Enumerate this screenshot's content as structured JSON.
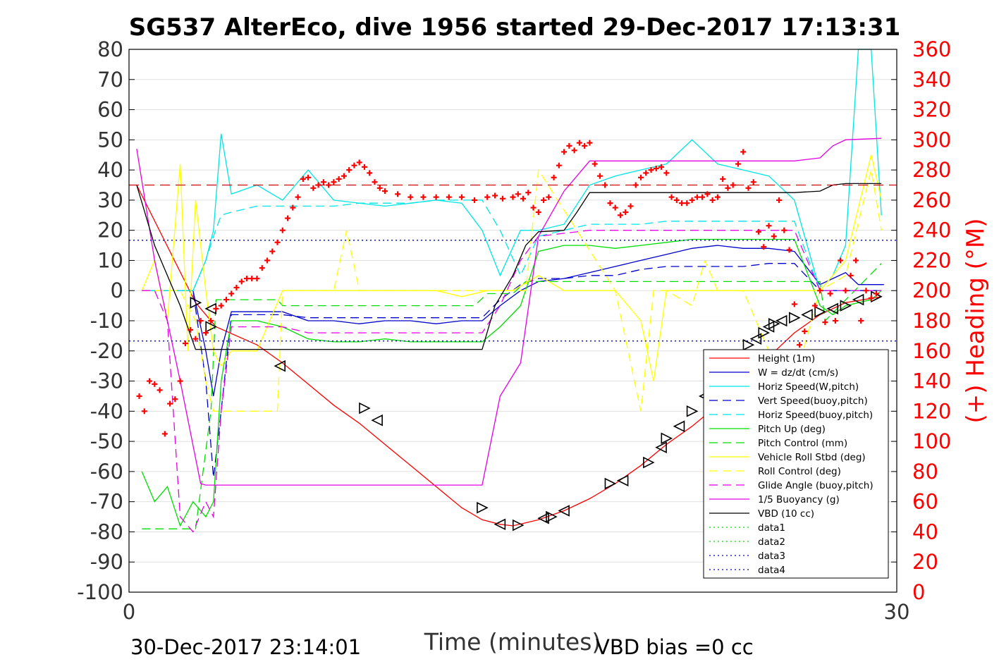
{
  "chart_data": {
    "type": "line",
    "title": "SG537 AlterEco, dive 1956 started 29-Dec-2017 17:13:31",
    "xlabel": "Time (minutes)",
    "ylabel_right": "(+) Heading (°M)",
    "xlim": [
      0,
      30
    ],
    "ylim_left": [
      -100,
      80
    ],
    "ylim_right": [
      0,
      360
    ],
    "x_ticks": [
      "0",
      "30"
    ],
    "y_ticks_left": [
      "80",
      "70",
      "60",
      "50",
      "40",
      "30",
      "20",
      "10",
      "0",
      "-10",
      "-20",
      "-30",
      "-40",
      "-50",
      "-60",
      "-70",
      "-80",
      "-90",
      "-100"
    ],
    "y_ticks_right": [
      "360",
      "340",
      "320",
      "300",
      "280",
      "260",
      "240",
      "220",
      "200",
      "180",
      "160",
      "140",
      "120",
      "100",
      "80",
      "60",
      "40",
      "20",
      "0"
    ],
    "grid": true,
    "legend_placement": "lower-right",
    "footer_left": "30-Dec-2017 23:14:01",
    "footer_right": "VBD bias =0 cc",
    "colors": {
      "heading": "#ff0000",
      "right_axis": "#ff0000",
      "height": "#ff0000",
      "w": "#0000cc",
      "horiz_speed": "#00e5e5",
      "pitch": "#00dd00",
      "roll": "#ffff00",
      "glide": "#e600e6",
      "buoyancy": "#e600e6",
      "vbd": "#000000"
    },
    "series": [
      {
        "name": "Height (1m)",
        "color": "#ff0000",
        "dash": "solid",
        "x": [
          0.3,
          2.6,
          3.4,
          5,
          6,
          7,
          8,
          9,
          10,
          11,
          12,
          13,
          13.8,
          14.5,
          15,
          15.5,
          16,
          17,
          18,
          19,
          20,
          21,
          22,
          23,
          24,
          25,
          26,
          27,
          28,
          29.4
        ],
        "y": [
          35,
          -4,
          -12,
          -18,
          -24,
          -31,
          -38,
          -44,
          -51,
          -58,
          -65,
          -72,
          -76,
          -77.5,
          -78,
          -77,
          -76,
          -73,
          -69,
          -64,
          -58,
          -51,
          -45,
          -38,
          -30,
          -22,
          -14,
          -8,
          -4,
          -2
        ]
      },
      {
        "name": "W = dz/dt (cm/s)",
        "color": "#0000cc",
        "dash": "solid",
        "x": [
          0.5,
          1.5,
          2.5,
          3,
          3.3,
          3.6,
          4,
          5,
          6,
          7,
          8,
          9,
          10,
          11,
          12,
          13,
          13.8,
          14.5,
          15.3,
          16,
          17,
          18,
          19,
          20,
          21,
          22,
          23,
          24,
          25,
          26,
          27,
          27.5,
          28,
          28.5,
          29.5
        ],
        "y": [
          0,
          0,
          0,
          -20,
          -35,
          -20,
          -7,
          -7,
          -7,
          -10,
          -10,
          -11,
          -10,
          -10,
          -11,
          -10,
          -10,
          -5,
          0,
          3,
          4,
          6,
          8,
          10,
          12,
          14,
          15,
          14,
          14,
          13,
          2,
          4,
          6,
          2,
          2
        ]
      },
      {
        "name": "Horiz Speed(W,pitch)",
        "color": "#00e5e5",
        "dash": "solid",
        "x": [
          0.5,
          1.5,
          2.5,
          3,
          3.3,
          3.6,
          4,
          5,
          6,
          7,
          8,
          9,
          10,
          11,
          12,
          13,
          13.8,
          14.5,
          15.3,
          16,
          17,
          18,
          19,
          20,
          21,
          22,
          23,
          24,
          25,
          26,
          27,
          27.5,
          28,
          28.5,
          29,
          29.4
        ],
        "y": [
          0,
          0,
          0,
          10,
          20,
          52,
          32,
          35,
          30,
          40,
          30,
          29,
          28,
          29,
          30,
          29,
          20,
          5,
          20,
          20,
          22,
          35,
          38,
          40,
          42,
          50,
          42,
          40,
          38,
          30,
          0,
          5,
          15,
          80,
          80,
          25
        ]
      },
      {
        "name": "Vert Speed(buoy,pitch)",
        "color": "#0000cc",
        "dash": "dash",
        "x": [
          0.5,
          1.5,
          2.5,
          3,
          3.3,
          3.6,
          4,
          5,
          6,
          7,
          8,
          9,
          10,
          11,
          12,
          13,
          13.8,
          14.5,
          15.3,
          16,
          17,
          18,
          19,
          20,
          21,
          22,
          23,
          24,
          25,
          26,
          27,
          28,
          29.4
        ],
        "y": [
          0,
          0,
          0,
          -30,
          -62,
          -40,
          -8,
          -8,
          -8,
          -9,
          -9,
          -9,
          -9,
          -9,
          -9,
          -9,
          -9,
          -3,
          2,
          4,
          4,
          5,
          5,
          7,
          8,
          8,
          8,
          8,
          9,
          9,
          0,
          0,
          0
        ]
      },
      {
        "name": "Horiz Speed(buoy,pitch)",
        "color": "#00e5e5",
        "dash": "dash",
        "x": [
          0.5,
          2.5,
          3,
          3.3,
          3.6,
          4,
          5,
          6,
          7,
          8,
          9,
          10,
          11,
          12,
          13,
          13.8,
          14.5,
          15.3,
          16,
          17,
          18,
          19,
          20,
          21,
          22,
          23,
          24,
          25,
          26,
          27,
          28,
          29.4
        ],
        "y": [
          0,
          0,
          10,
          18,
          25,
          26,
          28,
          28,
          28,
          28,
          29,
          29,
          29,
          30,
          30,
          30,
          20,
          5,
          18,
          20,
          22,
          22,
          22,
          23,
          23,
          23,
          23,
          23,
          23,
          0,
          0,
          0
        ]
      },
      {
        "name": "Pitch Up (deg)",
        "color": "#00dd00",
        "dash": "solid",
        "x": [
          0.5,
          1,
          1.5,
          2,
          2.5,
          3,
          3.3,
          3.6,
          4,
          5,
          6,
          7,
          8,
          9,
          10,
          11,
          12,
          13,
          13.8,
          14.5,
          15.3,
          16,
          17,
          18,
          19,
          20,
          21,
          22,
          23,
          24,
          25,
          26,
          27,
          27.5,
          28,
          29,
          29.4
        ],
        "y": [
          -60,
          -70,
          -65,
          -78,
          -70,
          -75,
          -70,
          -30,
          -10,
          -10,
          -12,
          -16,
          -17,
          -17,
          -16,
          -17,
          -17,
          -17,
          -17,
          -12,
          -5,
          13,
          15,
          15,
          14,
          15,
          16,
          17,
          17,
          17,
          17,
          17,
          -5,
          -8,
          -5,
          -3,
          0
        ]
      },
      {
        "name": "Pitch Control (mm)",
        "color": "#00dd00",
        "dash": "dash",
        "x": [
          0.5,
          2.6,
          3.2,
          3.4,
          5.8,
          6,
          13.5,
          14,
          15,
          15.5,
          27,
          27.2,
          29.4
        ],
        "y": [
          -79,
          -79,
          -40,
          -3,
          -3,
          -5,
          -5,
          -1,
          -1,
          3,
          3,
          -10,
          9
        ]
      },
      {
        "name": "Vehicle Roll Stbd (deg)",
        "color": "#ffff00",
        "dash": "solid",
        "x": [
          0.5,
          1,
          1.5,
          2,
          2.3,
          2.6,
          3,
          3.3,
          3.6,
          4,
          5,
          5.5,
          6,
          7,
          8,
          8.5,
          9,
          10,
          11,
          12,
          13,
          14,
          15,
          16,
          17,
          17.5,
          18,
          19,
          20,
          20.5,
          21,
          22,
          23,
          24,
          25,
          26,
          27,
          28,
          29,
          29.4
        ],
        "y": [
          0,
          10,
          -10,
          42,
          -20,
          30,
          0,
          -20,
          -25,
          -20,
          -20,
          -10,
          0,
          0,
          0,
          0,
          0,
          0,
          0,
          0,
          -2,
          0,
          0,
          5,
          0,
          0,
          0,
          0,
          -10,
          -30,
          0,
          0,
          0,
          0,
          0,
          0,
          0,
          10,
          45,
          30
        ]
      },
      {
        "name": "Roll Control (deg)",
        "color": "#ffff00",
        "dash": "dash",
        "x": [
          0.5,
          2,
          2.6,
          3,
          3.3,
          5.8,
          6,
          8,
          8.5,
          9,
          10,
          13,
          14,
          15,
          15.5,
          16,
          19,
          19.5,
          20,
          20.5,
          21,
          22,
          22.5,
          23,
          24,
          25,
          26,
          27,
          28,
          29,
          29.4
        ],
        "y": [
          0,
          0,
          -10,
          -30,
          -40,
          -40,
          0,
          0,
          20,
          0,
          0,
          0,
          0,
          0,
          0,
          40,
          0,
          -20,
          -40,
          0,
          0,
          -5,
          10,
          0,
          0,
          -20,
          -30,
          0,
          5,
          40,
          20
        ]
      },
      {
        "name": "Glide Angle (buoy,pitch)",
        "color": "#e600e6",
        "dash": "dash",
        "x": [
          0.5,
          1,
          1.5,
          2,
          2.5,
          3,
          3.3,
          3.6,
          4,
          5,
          6,
          7,
          8,
          9,
          10,
          11,
          12,
          13,
          13.8,
          14.5,
          15.3,
          16,
          17,
          18,
          19,
          20,
          21,
          22,
          23,
          24,
          25,
          26,
          27,
          28,
          29.4
        ],
        "y": [
          0,
          0,
          -10,
          -75,
          -80,
          -70,
          -75,
          -40,
          -12,
          -12,
          -12,
          -14,
          -14,
          -14,
          -14,
          -14,
          -14,
          -14,
          -14,
          -5,
          10,
          18,
          19,
          20,
          20,
          20,
          20,
          20,
          20,
          20,
          20,
          20,
          0,
          0,
          0
        ]
      },
      {
        "name": "1/5 Buoyancy (g)",
        "color": "#e600e6",
        "dash": "solid",
        "x": [
          0.3,
          1,
          2,
          2.8,
          3,
          6,
          13.8,
          14.5,
          15.3,
          16,
          17,
          18,
          19,
          20,
          21,
          22,
          23,
          24,
          25,
          26,
          27,
          27.5,
          28,
          29.4
        ],
        "y": [
          47,
          10,
          -30,
          -64,
          -64.5,
          -64.5,
          -64.5,
          -35,
          -24,
          18,
          33,
          43,
          43,
          43,
          43,
          43,
          43,
          43,
          43,
          43,
          44,
          48,
          50,
          50.5
        ]
      },
      {
        "name": "VBD (10 cc)",
        "color": "#000000",
        "dash": "solid",
        "x": [
          0.3,
          1,
          2,
          2.6,
          3,
          6,
          13.8,
          14.3,
          15,
          15.5,
          16,
          17,
          17.5,
          18,
          19,
          20,
          21,
          22,
          23,
          24,
          25,
          26,
          27,
          27.5,
          28,
          29.4
        ],
        "y": [
          35,
          15,
          -5,
          -19.5,
          -19.5,
          -19.5,
          -19.5,
          -5,
          5,
          15,
          19.5,
          20,
          26,
          32.5,
          32.5,
          32.5,
          32.5,
          32.5,
          32.5,
          32.5,
          32.5,
          32.5,
          33,
          35,
          35.5,
          35.5
        ]
      },
      {
        "name": "data1",
        "color": "#00dd00",
        "dash": "dot",
        "x": [],
        "y": []
      },
      {
        "name": "data2",
        "color": "#00dd00",
        "dash": "dot",
        "x": [],
        "y": []
      },
      {
        "name": "data3",
        "color": "#0000cc",
        "dash": "dot",
        "x": [
          0,
          30
        ],
        "y": [
          16.7,
          16.7
        ]
      },
      {
        "name": "data4",
        "color": "#0000cc",
        "dash": "dot",
        "x": [
          0,
          30
        ],
        "y": [
          -16.7,
          -16.7
        ]
      }
    ],
    "heading_reference": {
      "value": 270,
      "color": "#cc0000"
    },
    "heading_points": {
      "x": [
        0.4,
        0.6,
        0.8,
        1,
        1.2,
        1.4,
        1.6,
        1.8,
        2,
        2.2,
        2.4,
        2.6,
        2.8,
        3,
        3.2,
        3.4,
        3.6,
        3.8,
        4,
        4.2,
        4.4,
        4.6,
        4.8,
        5,
        5.2,
        5.4,
        5.6,
        5.8,
        6,
        6.2,
        6.4,
        6.6,
        6.8,
        7,
        7.2,
        7.4,
        7.6,
        7.8,
        8,
        8.2,
        8.4,
        8.6,
        8.8,
        9,
        9.2,
        9.4,
        9.6,
        9.8,
        10,
        10.5,
        11,
        11.5,
        12,
        12.5,
        13,
        13.5,
        14,
        14.3,
        14.6,
        15,
        15.2,
        15.4,
        15.6,
        15.8,
        16,
        16.2,
        16.4,
        16.6,
        16.8,
        17,
        17.2,
        17.4,
        17.6,
        17.8,
        18,
        18.2,
        18.4,
        18.6,
        18.8,
        19,
        19.2,
        19.4,
        19.6,
        19.8,
        20,
        20.2,
        20.4,
        20.6,
        20.8,
        21,
        21.2,
        21.4,
        21.6,
        21.8,
        22,
        22.2,
        22.4,
        22.6,
        22.8,
        23,
        23.2,
        23.4,
        23.6,
        23.8,
        24,
        24.2,
        24.4,
        24.6,
        24.8,
        25,
        25.2,
        25.4,
        25.6,
        25.8,
        26,
        26.2,
        26.4,
        26.6,
        26.8,
        27,
        27.2,
        27.4,
        27.6,
        27.8,
        28,
        28.2,
        28.4,
        28.6,
        28.8,
        29,
        29.2
      ],
      "y": [
        130,
        120,
        140,
        138,
        134,
        105,
        125,
        128,
        140,
        165,
        174,
        168,
        180,
        172,
        180,
        188,
        190,
        194,
        198,
        202,
        206,
        208,
        208,
        208,
        215,
        220,
        226,
        232,
        240,
        248,
        255,
        262,
        274,
        275,
        268,
        270,
        272,
        270,
        272,
        274,
        276,
        280,
        283,
        285,
        282,
        278,
        272,
        268,
        266,
        264,
        262,
        262,
        262,
        262,
        262,
        260,
        262,
        263,
        261,
        262,
        264,
        261,
        265,
        255,
        252,
        260,
        262,
        275,
        283,
        292,
        296,
        293,
        298,
        296,
        298,
        284,
        276,
        270,
        258,
        255,
        250,
        252,
        256,
        270,
        275,
        278,
        280,
        281,
        282,
        278,
        262,
        260,
        258,
        258,
        260,
        262,
        262,
        264,
        260,
        262,
        274,
        268,
        270,
        284,
        292,
        268,
        272,
        239,
        229,
        243,
        236,
        260,
        240,
        227,
        191,
        164,
        173,
        157,
        190,
        200,
        179,
        198,
        180,
        220,
        200,
        210,
        220,
        180,
        200,
        195,
        198
      ]
    },
    "markers": {
      "x": [
        2.6,
        3.2,
        3.2,
        5.9,
        9.2,
        9.7,
        13.8,
        14.5,
        15.2,
        16.2,
        16.5,
        17,
        18.8,
        19.3,
        20.3,
        20.8,
        21,
        21.5,
        22,
        22.5,
        23,
        24,
        24.2,
        24.5,
        24.8,
        25,
        25.2,
        25.5,
        26,
        26.5,
        27,
        27.5,
        28,
        28.5,
        29.2
      ],
      "y": [
        -4,
        -6,
        -12,
        -25,
        -39,
        -43,
        -72,
        -77.5,
        -77.8,
        -75.5,
        -75,
        -73,
        -64,
        -63,
        -57,
        -52,
        -49,
        -45,
        -40,
        -35,
        -30,
        -22,
        -18,
        -16,
        -14,
        -12,
        -11,
        -10,
        -9,
        -8,
        -7,
        -6,
        -5,
        -3,
        -2
      ]
    }
  }
}
